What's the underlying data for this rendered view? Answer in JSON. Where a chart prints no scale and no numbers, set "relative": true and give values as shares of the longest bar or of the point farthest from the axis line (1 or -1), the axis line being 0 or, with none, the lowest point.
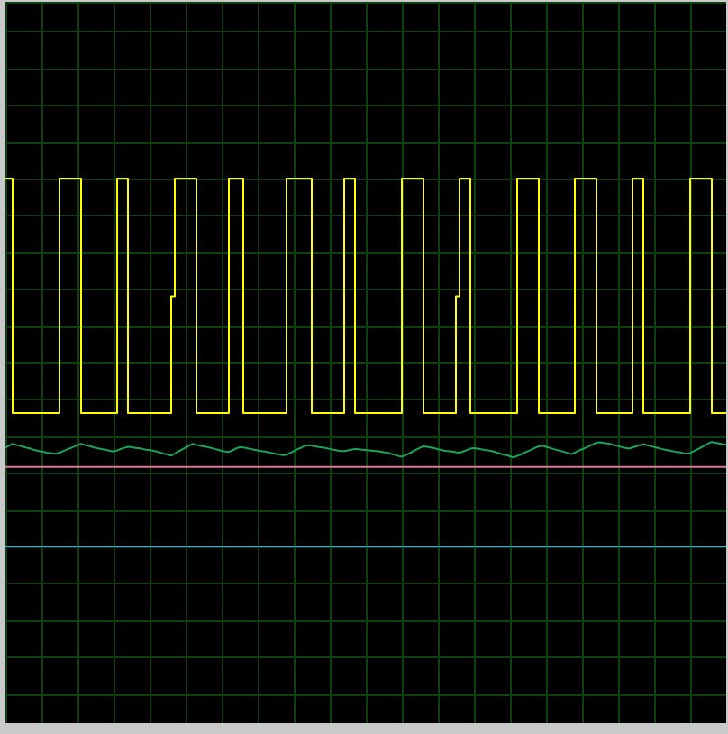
{
  "chart_data": {
    "type": "line",
    "relative": true,
    "grid": true,
    "categories": [
      null,
      null,
      null,
      null,
      null,
      null,
      null,
      null,
      null,
      null,
      null,
      null,
      null,
      null,
      null,
      null,
      null,
      null,
      null,
      null,
      null,
      null,
      null,
      null,
      null,
      null,
      null,
      null,
      null,
      null,
      null,
      null,
      null,
      null,
      null,
      null,
      null,
      null,
      null,
      null,
      null,
      null,
      null,
      null,
      null,
      null,
      null,
      null,
      null,
      null,
      null,
      null,
      null,
      null,
      null,
      null,
      null,
      null,
      null,
      null,
      null,
      null,
      null,
      null,
      null,
      null,
      null,
      null,
      null,
      null,
      null,
      null,
      null,
      null,
      null,
      null,
      null,
      null,
      null,
      null,
      null,
      null,
      null,
      null,
      null,
      null,
      null,
      null,
      null,
      null,
      null,
      null,
      null,
      null,
      null,
      null,
      null,
      null,
      null,
      null,
      null,
      null,
      null,
      null,
      null,
      null,
      null,
      null,
      null,
      null,
      null,
      null,
      null,
      null,
      null,
      null,
      null,
      null,
      null,
      null,
      null,
      null,
      null,
      null,
      null,
      null,
      null,
      null,
      null,
      null,
      null,
      null,
      null,
      null,
      null,
      null,
      null,
      null,
      null,
      null,
      null,
      null,
      null,
      null,
      null,
      null,
      null,
      null,
      null,
      null,
      null,
      null,
      null,
      null,
      null,
      null,
      null,
      null,
      null,
      null,
      null,
      null,
      null,
      null,
      null,
      null,
      null,
      null,
      null,
      null,
      null,
      null,
      null,
      null,
      null,
      null,
      null,
      null,
      null,
      null,
      null,
      null,
      null,
      null,
      null,
      null,
      null,
      null,
      null,
      null,
      null,
      null,
      null,
      null,
      null,
      null,
      null,
      null,
      null,
      null,
      null
    ],
    "series": [
      {
        "type": "step",
        "color": "#ffff00",
        "values": [
          1,
          1,
          0.363,
          0.363,
          0.363,
          0.363,
          0.363,
          0.363,
          0.363,
          0.363,
          0.363,
          0.363,
          0.363,
          0.363,
          0.363,
          1,
          1,
          1,
          1,
          1,
          1,
          0.363,
          0.363,
          0.363,
          0.363,
          0.363,
          0.363,
          0.363,
          0.363,
          0.363,
          0.363,
          1,
          1,
          1,
          0.363,
          0.363,
          0.363,
          0.363,
          0.363,
          0.363,
          0.363,
          0.363,
          0.363,
          0.363,
          0.363,
          0.363,
          0.68,
          1,
          1,
          1,
          1,
          1,
          1,
          0.363,
          0.363,
          0.363,
          0.363,
          0.363,
          0.363,
          0.363,
          0.363,
          0.363,
          1,
          1,
          1,
          1,
          0.363,
          0.363,
          0.363,
          0.363,
          0.363,
          0.363,
          0.363,
          0.363,
          0.363,
          0.363,
          0.363,
          0.363,
          1,
          1,
          1,
          1,
          1,
          1,
          1,
          0.363,
          0.363,
          0.363,
          0.363,
          0.363,
          0.363,
          0.363,
          0.363,
          0.363,
          1,
          1,
          1,
          0.363,
          0.363,
          0.363,
          0.363,
          0.363,
          0.363,
          0.363,
          0.363,
          0.363,
          0.363,
          0.363,
          0.363,
          0.363,
          1,
          1,
          1,
          1,
          1,
          1,
          0.363,
          0.363,
          0.363,
          0.363,
          0.363,
          0.363,
          0.363,
          0.363,
          0.363,
          0.68,
          1,
          1,
          1,
          0.363,
          0.363,
          0.363,
          0.363,
          0.363,
          0.363,
          0.363,
          0.363,
          0.363,
          0.363,
          0.363,
          0.363,
          0.363,
          1,
          1,
          1,
          1,
          1,
          1,
          0.363,
          0.363,
          0.363,
          0.363,
          0.363,
          0.363,
          0.363,
          0.363,
          0.363,
          0.363,
          1,
          1,
          1,
          1,
          1,
          1,
          0.363,
          0.363,
          0.363,
          0.363,
          0.363,
          0.363,
          0.363,
          0.363,
          0.363,
          0.363,
          1,
          1,
          1,
          0.363,
          0.363,
          0.363,
          0.363,
          0.363,
          0.363,
          0.363,
          0.363,
          0.363,
          0.363,
          0.363,
          0.363,
          0.363,
          1,
          1,
          1,
          1,
          1,
          1,
          0.363,
          0.363,
          0.363,
          0.363,
          0.363
        ]
      },
      {
        "color": "#1ba35a",
        "values": [
          0.268,
          0.274,
          0.279,
          0.276,
          0.274,
          0.271,
          0.268,
          0.266,
          0.262,
          0.26,
          0.258,
          0.256,
          0.254,
          0.253,
          0.252,
          0.255,
          0.259,
          0.263,
          0.267,
          0.271,
          0.275,
          0.279,
          0.276,
          0.274,
          0.271,
          0.268,
          0.266,
          0.264,
          0.262,
          0.26,
          0.258,
          0.261,
          0.265,
          0.268,
          0.271,
          0.27,
          0.268,
          0.267,
          0.265,
          0.263,
          0.262,
          0.26,
          0.258,
          0.255,
          0.252,
          0.25,
          0.247,
          0.252,
          0.258,
          0.263,
          0.269,
          0.274,
          0.279,
          0.276,
          0.274,
          0.272,
          0.27,
          0.268,
          0.265,
          0.263,
          0.26,
          0.258,
          0.257,
          0.261,
          0.266,
          0.27,
          0.269,
          0.267,
          0.265,
          0.263,
          0.261,
          0.259,
          0.258,
          0.256,
          0.254,
          0.252,
          0.25,
          0.248,
          0.249,
          0.254,
          0.259,
          0.264,
          0.268,
          0.273,
          0.275,
          0.274,
          0.272,
          0.27,
          0.269,
          0.267,
          0.265,
          0.263,
          0.261,
          0.259,
          0.259,
          0.261,
          0.263,
          0.265,
          0.264,
          0.263,
          0.262,
          0.261,
          0.26,
          0.259,
          0.258,
          0.256,
          0.255,
          0.252,
          0.249,
          0.246,
          0.244,
          0.248,
          0.253,
          0.258,
          0.263,
          0.268,
          0.272,
          0.271,
          0.269,
          0.267,
          0.264,
          0.262,
          0.26,
          0.259,
          0.258,
          0.256,
          0.255,
          0.258,
          0.262,
          0.266,
          0.267,
          0.266,
          0.264,
          0.262,
          0.261,
          0.259,
          0.256,
          0.253,
          0.25,
          0.248,
          0.245,
          0.242,
          0.246,
          0.25,
          0.255,
          0.259,
          0.263,
          0.268,
          0.272,
          0.274,
          0.271,
          0.268,
          0.265,
          0.262,
          0.26,
          0.257,
          0.254,
          0.251,
          0.255,
          0.26,
          0.264,
          0.268,
          0.273,
          0.277,
          0.282,
          0.283,
          0.281,
          0.28,
          0.278,
          0.275,
          0.273,
          0.27,
          0.268,
          0.266,
          0.269,
          0.272,
          0.275,
          0.278,
          0.275,
          0.273,
          0.27,
          0.268,
          0.265,
          0.263,
          0.261,
          0.259,
          0.257,
          0.256,
          0.254,
          0.252,
          0.254,
          0.259,
          0.264,
          0.269,
          0.274,
          0.28,
          0.284,
          0.282,
          0.28,
          0.278,
          0.276
        ]
      },
      {
        "color": "#d87a96",
        "values": [
          0.216,
          0.216,
          0.216,
          0.216,
          0.216,
          0.216,
          0.216,
          0.216,
          0.216,
          0.216,
          0.216,
          0.216,
          0.216,
          0.216,
          0.216,
          0.216,
          0.216,
          0.216,
          0.216,
          0.216,
          0.216,
          0.216,
          0.216,
          0.216,
          0.216,
          0.216,
          0.216,
          0.216,
          0.216,
          0.216,
          0.216,
          0.216,
          0.216,
          0.216,
          0.216,
          0.216,
          0.216,
          0.216,
          0.216,
          0.216,
          0.216,
          0.216,
          0.216,
          0.216,
          0.216,
          0.216,
          0.216,
          0.216,
          0.216,
          0.216,
          0.216,
          0.216,
          0.216,
          0.216,
          0.216,
          0.216,
          0.216,
          0.216,
          0.216,
          0.216,
          0.216,
          0.216,
          0.216,
          0.216,
          0.216,
          0.216,
          0.216,
          0.216,
          0.216,
          0.216,
          0.216,
          0.216,
          0.216,
          0.216,
          0.216,
          0.216,
          0.216,
          0.216,
          0.216,
          0.216,
          0.216,
          0.216,
          0.216,
          0.216,
          0.216,
          0.216,
          0.216,
          0.216,
          0.216,
          0.216,
          0.216,
          0.216,
          0.216,
          0.216,
          0.216,
          0.216,
          0.216,
          0.216,
          0.216,
          0.216,
          0.216,
          0.216,
          0.216,
          0.216,
          0.216,
          0.216,
          0.216,
          0.216,
          0.216,
          0.216,
          0.216,
          0.216,
          0.216,
          0.216,
          0.216,
          0.216,
          0.216,
          0.216,
          0.216,
          0.216,
          0.216,
          0.216,
          0.216,
          0.216,
          0.216,
          0.216,
          0.216,
          0.216,
          0.216,
          0.216,
          0.216,
          0.216,
          0.216,
          0.216,
          0.216,
          0.216,
          0.216,
          0.216,
          0.216,
          0.216,
          0.216,
          0.216,
          0.216,
          0.216,
          0.216,
          0.216,
          0.216,
          0.216,
          0.216,
          0.216,
          0.216,
          0.216,
          0.216,
          0.216,
          0.216,
          0.216,
          0.216,
          0.216,
          0.216,
          0.216,
          0.216,
          0.216,
          0.216,
          0.216,
          0.216,
          0.216,
          0.216,
          0.216,
          0.216,
          0.216,
          0.216,
          0.216,
          0.216,
          0.216,
          0.216,
          0.216,
          0.216,
          0.216,
          0.216,
          0.216,
          0.216,
          0.216,
          0.216,
          0.216,
          0.216,
          0.216,
          0.216,
          0.216,
          0.216,
          0.216,
          0.216,
          0.216,
          0.216,
          0.216,
          0.216,
          0.216,
          0.216,
          0.216,
          0.216,
          0.216,
          0.216
        ]
      },
      {
        "color": "#3aa6dc",
        "values": [
          0,
          0,
          0,
          0,
          0,
          0,
          0,
          0,
          0,
          0,
          0,
          0,
          0,
          0,
          0,
          0,
          0,
          0,
          0,
          0,
          0,
          0,
          0,
          0,
          0,
          0,
          0,
          0,
          0,
          0,
          0,
          0,
          0,
          0,
          0,
          0,
          0,
          0,
          0,
          0,
          0,
          0,
          0,
          0,
          0,
          0,
          0,
          0,
          0,
          0,
          0,
          0,
          0,
          0,
          0,
          0,
          0,
          0,
          0,
          0,
          0,
          0,
          0,
          0,
          0,
          0,
          0,
          0,
          0,
          0,
          0,
          0,
          0,
          0,
          0,
          0,
          0,
          0,
          0,
          0,
          0,
          0,
          0,
          0,
          0,
          0,
          0,
          0,
          0,
          0,
          0,
          0,
          0,
          0,
          0,
          0,
          0,
          0,
          0,
          0,
          0,
          0,
          0,
          0,
          0,
          0,
          0,
          0,
          0,
          0,
          0,
          0,
          0,
          0,
          0,
          0,
          0,
          0,
          0,
          0,
          0,
          0,
          0,
          0,
          0,
          0,
          0,
          0,
          0,
          0,
          0,
          0,
          0,
          0,
          0,
          0,
          0,
          0,
          0,
          0,
          0,
          0,
          0,
          0,
          0,
          0,
          0,
          0,
          0,
          0,
          0,
          0,
          0,
          0,
          0,
          0,
          0,
          0,
          0,
          0,
          0,
          0,
          0,
          0,
          0,
          0,
          0,
          0,
          0,
          0,
          0,
          0,
          0,
          0,
          0,
          0,
          0,
          0,
          0,
          0,
          0,
          0,
          0,
          0,
          0,
          0,
          0,
          0,
          0,
          0,
          0,
          0,
          0,
          0,
          0,
          0,
          0,
          0,
          0,
          0,
          0
        ]
      }
    ]
  }
}
